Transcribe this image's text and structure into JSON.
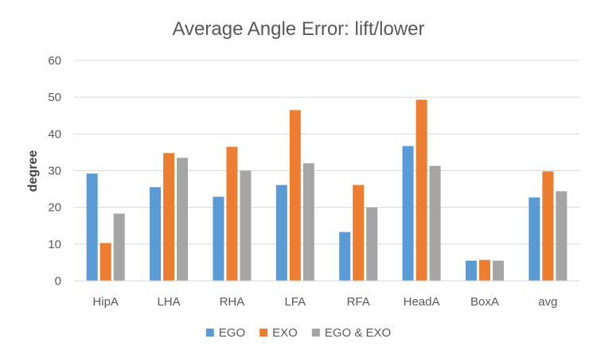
{
  "chart_data": {
    "type": "bar",
    "title": "Average Angle Error: lift/lower",
    "xlabel": "",
    "ylabel": "degree",
    "ylim": [
      0,
      60
    ],
    "yticks": [
      0,
      10,
      20,
      30,
      40,
      50,
      60
    ],
    "grid": true,
    "legend": "bottom",
    "categories": [
      "HipA",
      "LHA",
      "RHA",
      "LFA",
      "RFA",
      "HeadA",
      "BoxA",
      "avg"
    ],
    "series": [
      {
        "name": "EGO",
        "color": "#5B9BD5",
        "values": [
          29.2,
          25.5,
          22.9,
          26.1,
          13.3,
          36.7,
          5.5,
          22.7
        ]
      },
      {
        "name": "EXO",
        "color": "#ED7D31",
        "values": [
          10.3,
          34.8,
          36.5,
          46.5,
          26.1,
          49.3,
          5.7,
          29.8
        ]
      },
      {
        "name": "EGO & EXO",
        "color": "#A5A5A5",
        "values": [
          18.3,
          33.5,
          30.0,
          32.0,
          20.0,
          31.3,
          5.5,
          24.4
        ]
      }
    ]
  }
}
